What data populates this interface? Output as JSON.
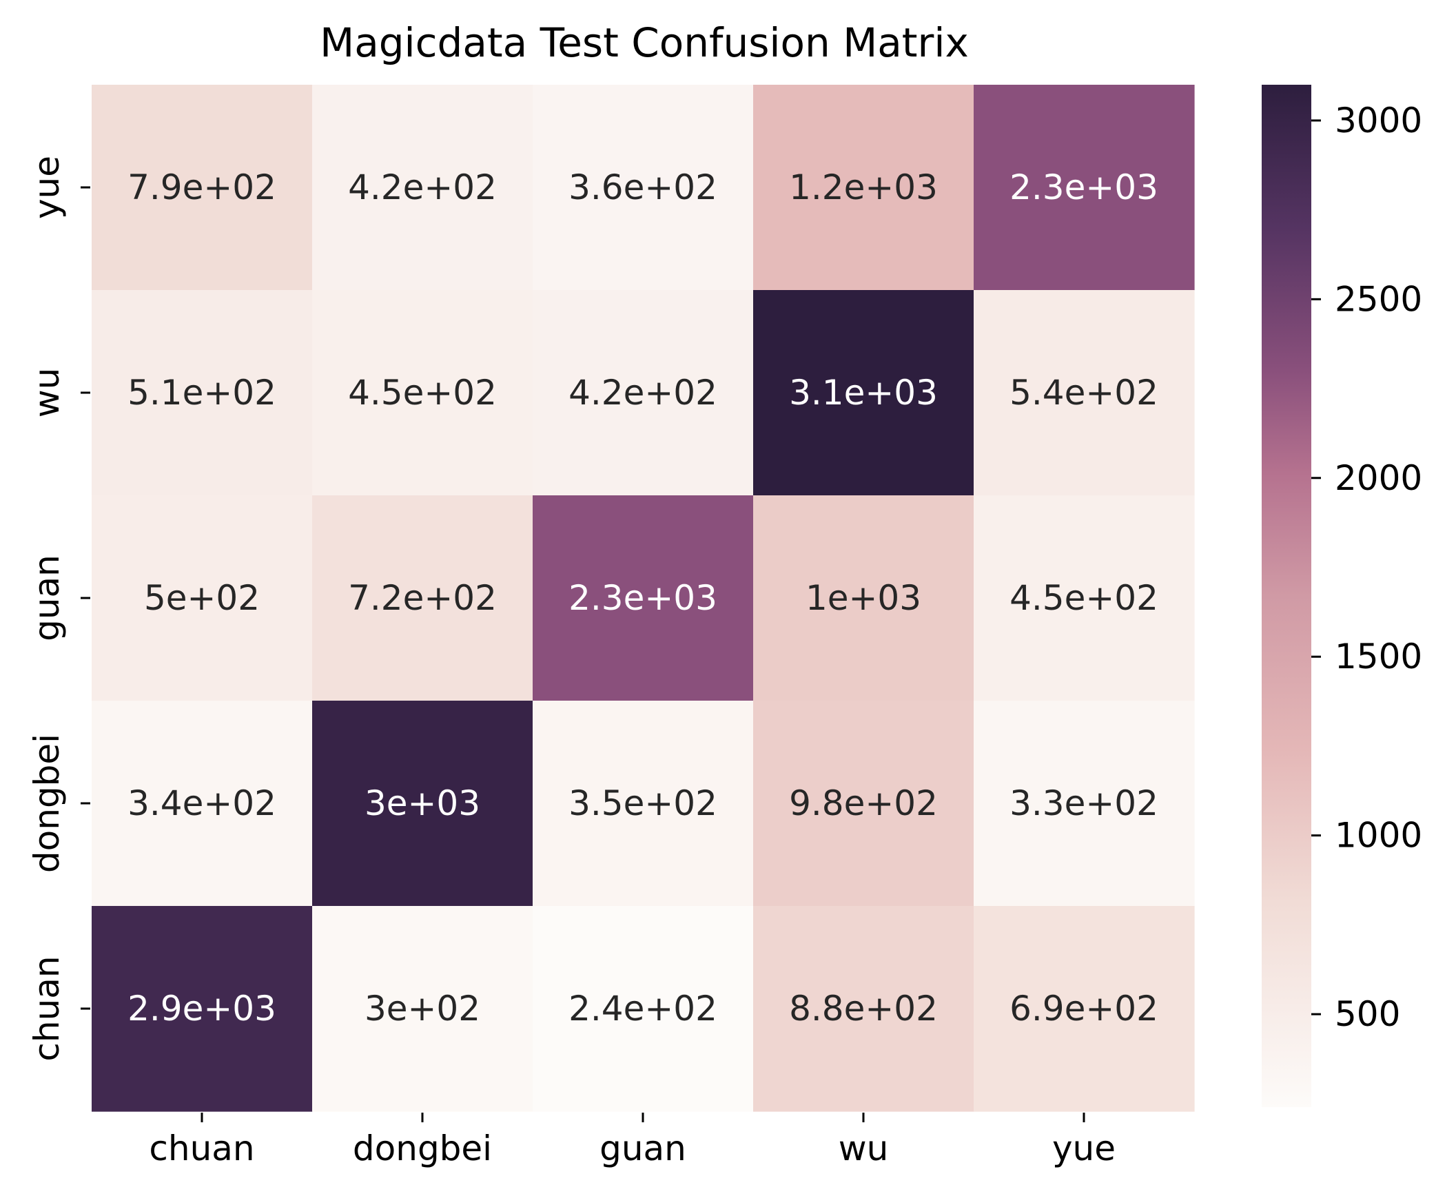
{
  "chart_data": {
    "type": "heatmap",
    "title": "Magicdata Test Confusion Matrix",
    "xlabel": "",
    "ylabel": "",
    "x_categories": [
      "chuan",
      "dongbei",
      "guan",
      "wu",
      "yue"
    ],
    "y_categories": [
      "yue",
      "wu",
      "guan",
      "dongbei",
      "chuan"
    ],
    "values": [
      [
        790,
        420,
        360,
        1200,
        2300
      ],
      [
        510,
        450,
        420,
        3100,
        540
      ],
      [
        500,
        720,
        2300,
        1000,
        450
      ],
      [
        340,
        3000,
        350,
        980,
        330
      ],
      [
        2900,
        300,
        240,
        880,
        690
      ]
    ],
    "annotations": [
      [
        "7.9e+02",
        "4.2e+02",
        "3.6e+02",
        "1.2e+03",
        "2.3e+03"
      ],
      [
        "5.1e+02",
        "4.5e+02",
        "4.2e+02",
        "3.1e+03",
        "5.4e+02"
      ],
      [
        "5e+02",
        "7.2e+02",
        "2.3e+03",
        "1e+03",
        "4.5e+02"
      ],
      [
        "3.4e+02",
        "3e+03",
        "3.5e+02",
        "9.8e+02",
        "3.3e+02"
      ],
      [
        "2.9e+03",
        "3e+02",
        "2.4e+02",
        "8.8e+02",
        "6.9e+02"
      ]
    ],
    "colorbar": {
      "range": [
        240,
        3100
      ],
      "ticks": [
        500,
        1000,
        1500,
        2000,
        2500,
        3000
      ],
      "tick_labels": [
        "500",
        "1000",
        "1500",
        "2000",
        "2500",
        "3000"
      ]
    },
    "colormap": {
      "stops": [
        [
          0.0,
          "#fdfbf9"
        ],
        [
          0.2,
          "#f1dcd6"
        ],
        [
          0.35,
          "#e4b7b7"
        ],
        [
          0.5,
          "#d09aa5"
        ],
        [
          0.62,
          "#b5728f"
        ],
        [
          0.72,
          "#8a507c"
        ],
        [
          0.86,
          "#553462"
        ],
        [
          1.0,
          "#2d1e3e"
        ]
      ],
      "dark_text_color": "#262626",
      "light_text_color": "#ffffff"
    },
    "grid": false,
    "legend": "colorbar-right"
  }
}
